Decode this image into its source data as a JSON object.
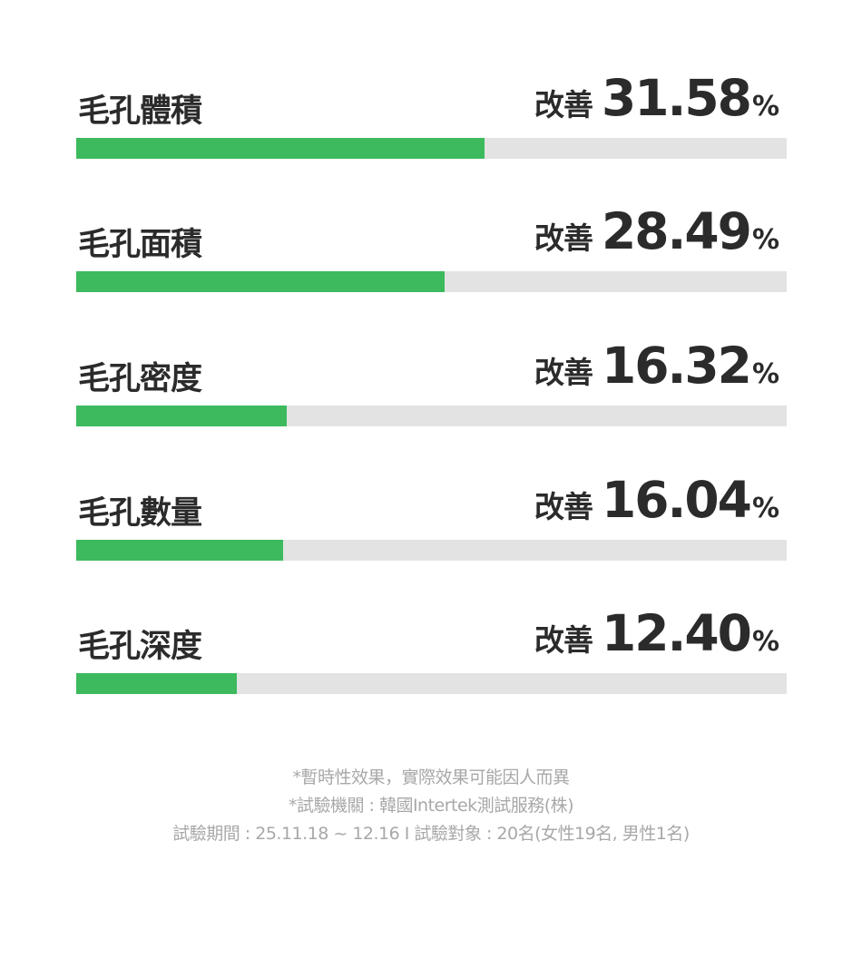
{
  "chart_data": {
    "type": "bar",
    "orientation": "horizontal",
    "value_prefix": "改善",
    "value_unit": "%",
    "xlim": [
      0,
      55
    ],
    "categories": [
      "毛孔體積",
      "毛孔面積",
      "毛孔密度",
      "毛孔數量",
      "毛孔深度"
    ],
    "values": [
      31.58,
      28.49,
      16.32,
      16.04,
      12.4
    ],
    "value_labels": [
      "31.58",
      "28.49",
      "16.32",
      "16.04",
      "12.40"
    ],
    "colors": {
      "fill": "#3cba5d",
      "track": "#e3e3e3",
      "text": "#2b2b2b"
    }
  },
  "notes": [
    "*暫時性效果，實際效果可能因人而異",
    "*試驗機關 : 韓國Intertek測試服務(株)",
    "試驗期間 : 25.11.18 ~ 12.16 I 試驗對象 : 20名(女性19名, 男性1名)"
  ],
  "colors": {
    "notes": "#a8a8a8"
  }
}
